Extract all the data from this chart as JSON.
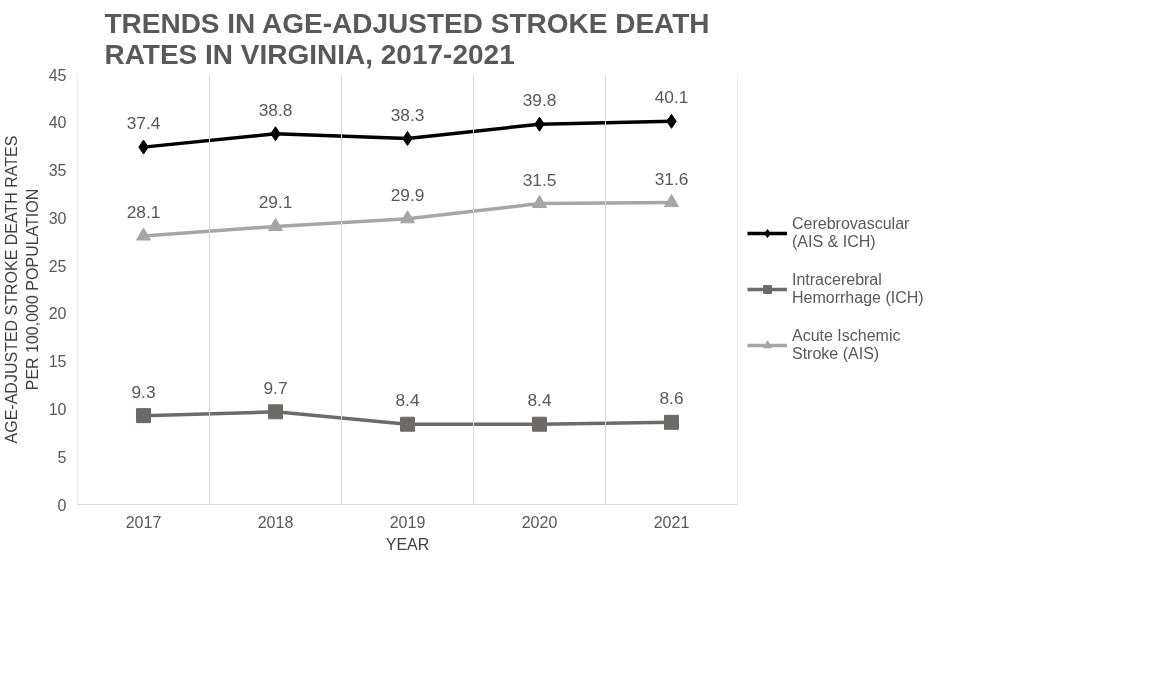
{
  "chart_data": {
    "type": "line",
    "title": "TRENDS IN AGE-ADJUSTED STROKE DEATH RATES IN VIRGINIA, 2017-2021",
    "xlabel": "YEAR",
    "ylabel": "AGE-ADJUSTED STROKE DEATH RATES PER 100,000 POPULATION",
    "categories": [
      "2017",
      "2018",
      "2019",
      "2020",
      "2021"
    ],
    "series": [
      {
        "name": "Cerebrovascular (AIS & ICH)",
        "color": "#000000",
        "marker": "diamond",
        "values": [
          37.4,
          38.8,
          38.3,
          39.8,
          40.1
        ]
      },
      {
        "name": "Intracerebral Hemorrhage (ICH)",
        "color": "#6e6a6a",
        "marker": "square",
        "values": [
          9.3,
          9.7,
          8.4,
          8.4,
          8.6
        ]
      },
      {
        "name": "Acute Ischemic Stroke (AIS)",
        "color": "#a6a6a6",
        "marker": "triangle",
        "values": [
          28.1,
          29.1,
          29.9,
          31.5,
          31.6
        ]
      }
    ],
    "ylim": [
      0,
      45
    ],
    "yticks": [
      0,
      5,
      10,
      15,
      20,
      25,
      30,
      35,
      40,
      45
    ],
    "grid": "x",
    "legend": "right",
    "data_labels": true,
    "line_style": "solid"
  }
}
